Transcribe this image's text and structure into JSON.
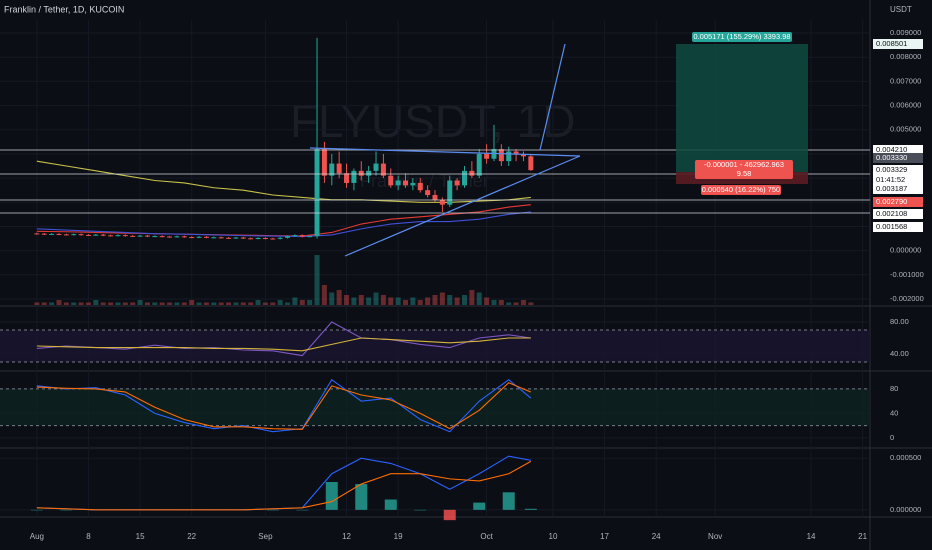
{
  "header": {
    "symbol": "Franklin / Tether, 1D, KUCOIN",
    "currency": "USDT",
    "watermark": "FLYUSDT, 1D",
    "watermark_sub": "Franklin / Tether",
    "countdown": "01:41:52"
  },
  "chart_data": {
    "type": "candlestick",
    "x": [
      0,
      1,
      2,
      3,
      4,
      5,
      6,
      7,
      8,
      9,
      10,
      11,
      12,
      13,
      14,
      15,
      16,
      17,
      18,
      19,
      20,
      21,
      22,
      23,
      24,
      25,
      26,
      27,
      28,
      29,
      30,
      31,
      32,
      33,
      34,
      35,
      36,
      37,
      38,
      39,
      40,
      41,
      42,
      43,
      44,
      45,
      46,
      47,
      48,
      49,
      50,
      51,
      52,
      53,
      54,
      55,
      56,
      57,
      58,
      59,
      60,
      61,
      62,
      63,
      64,
      65,
      66,
      67
    ],
    "open": [
      0.00071,
      0.0007,
      0.00068,
      0.00069,
      0.00067,
      0.00066,
      0.00068,
      0.00065,
      0.00064,
      0.00066,
      0.00063,
      0.00062,
      0.00064,
      0.00061,
      0.0006,
      0.00062,
      0.00059,
      0.0006,
      0.00058,
      0.00057,
      0.00059,
      0.00056,
      0.00055,
      0.00057,
      0.00054,
      0.00055,
      0.00053,
      0.00052,
      0.00054,
      0.00051,
      0.0005,
      0.00052,
      0.0005,
      0.00049,
      0.00053,
      0.0006,
      0.00064,
      0.00058,
      0.0006,
      0.0042,
      0.0031,
      0.0036,
      0.0032,
      0.0028,
      0.0033,
      0.0031,
      0.0033,
      0.0036,
      0.0031,
      0.0027,
      0.0029,
      0.0027,
      0.0028,
      0.0025,
      0.0023,
      0.0021,
      0.0019,
      0.0029,
      0.0027,
      0.0033,
      0.0031,
      0.004,
      0.0038,
      0.0042,
      0.0037,
      0.0041,
      0.004,
      0.0039
    ],
    "high": [
      0.00074,
      0.00073,
      0.00072,
      0.00072,
      0.0007,
      0.00071,
      0.00071,
      0.00068,
      0.00069,
      0.00069,
      0.00066,
      0.00067,
      0.00067,
      0.00064,
      0.00065,
      0.00065,
      0.00063,
      0.00063,
      0.00061,
      0.00062,
      0.00062,
      0.00059,
      0.0006,
      0.0006,
      0.00058,
      0.00058,
      0.00056,
      0.00057,
      0.00057,
      0.00054,
      0.00055,
      0.00055,
      0.00053,
      0.00056,
      0.00063,
      0.00067,
      0.00067,
      0.00063,
      0.0088,
      0.0045,
      0.004,
      0.0041,
      0.0036,
      0.0034,
      0.0037,
      0.0035,
      0.0041,
      0.004,
      0.0034,
      0.0031,
      0.0032,
      0.003,
      0.003,
      0.0027,
      0.0025,
      0.0022,
      0.0031,
      0.003,
      0.0035,
      0.0037,
      0.0042,
      0.0044,
      0.0052,
      0.0044,
      0.0043,
      0.0042,
      0.0041,
      0.004
    ],
    "low": [
      0.00067,
      0.00065,
      0.00065,
      0.00064,
      0.00063,
      0.00063,
      0.00062,
      0.00061,
      0.00061,
      0.0006,
      0.00059,
      0.00059,
      0.00058,
      0.00057,
      0.00057,
      0.00056,
      0.00056,
      0.00055,
      0.00054,
      0.00054,
      0.00053,
      0.00052,
      0.00052,
      0.00051,
      0.00051,
      0.0005,
      0.00049,
      0.00049,
      0.00048,
      0.00047,
      0.00047,
      0.00047,
      0.00046,
      0.00046,
      0.0005,
      0.00057,
      0.00055,
      0.00055,
      0.0005,
      0.0028,
      0.0027,
      0.003,
      0.0026,
      0.0025,
      0.0029,
      0.0028,
      0.0031,
      0.003,
      0.0026,
      0.0025,
      0.0026,
      0.0025,
      0.0024,
      0.0022,
      0.002,
      0.0016,
      0.0018,
      0.0025,
      0.0026,
      0.003,
      0.003,
      0.0036,
      0.0037,
      0.0035,
      0.0035,
      0.0037,
      0.0037,
      0.0033
    ],
    "close": [
      0.0007,
      0.00068,
      0.00069,
      0.00067,
      0.00066,
      0.00068,
      0.00065,
      0.00064,
      0.00066,
      0.00063,
      0.00062,
      0.00064,
      0.00061,
      0.0006,
      0.00062,
      0.00059,
      0.0006,
      0.00058,
      0.00057,
      0.00059,
      0.00056,
      0.00055,
      0.00057,
      0.00054,
      0.00055,
      0.00053,
      0.00052,
      0.00054,
      0.00051,
      0.0005,
      0.00052,
      0.0005,
      0.00049,
      0.00053,
      0.0006,
      0.00064,
      0.00058,
      0.0006,
      0.0042,
      0.0031,
      0.0036,
      0.0032,
      0.0028,
      0.0033,
      0.0031,
      0.0033,
      0.0036,
      0.0031,
      0.0027,
      0.0029,
      0.0027,
      0.0028,
      0.0025,
      0.0023,
      0.0021,
      0.0019,
      0.0029,
      0.0027,
      0.0033,
      0.0031,
      0.004,
      0.0038,
      0.0042,
      0.0037,
      0.0041,
      0.004,
      0.0039,
      0.00333
    ],
    "volume": [
      1,
      1,
      1,
      2,
      1,
      1,
      1,
      1,
      2,
      1,
      1,
      1,
      1,
      1,
      2,
      1,
      1,
      1,
      1,
      1,
      1,
      2,
      1,
      1,
      1,
      1,
      1,
      1,
      1,
      1,
      2,
      1,
      1,
      2,
      1,
      3,
      2,
      2,
      20,
      8,
      5,
      6,
      4,
      3,
      4,
      3,
      5,
      4,
      3,
      3,
      2,
      3,
      2,
      3,
      4,
      5,
      4,
      3,
      4,
      6,
      5,
      3,
      2,
      2,
      1,
      1,
      2,
      1
    ],
    "up_color": "#26a69a",
    "down_color": "#ef5350",
    "xlim": [
      -5,
      113
    ],
    "xticks": [
      {
        "value": 0,
        "label": "Aug"
      },
      {
        "value": 7,
        "label": "8"
      },
      {
        "value": 14,
        "label": "15"
      },
      {
        "value": 21,
        "label": "22"
      },
      {
        "value": 31,
        "label": "Sep"
      },
      {
        "value": 42,
        "label": "12"
      },
      {
        "value": 49,
        "label": "19"
      },
      {
        "value": 61,
        "label": "Oct"
      },
      {
        "value": 70,
        "label": "10"
      },
      {
        "value": 77,
        "label": "17"
      },
      {
        "value": 84,
        "label": "24"
      },
      {
        "value": 92,
        "label": "Nov"
      },
      {
        "value": 105,
        "label": "14"
      },
      {
        "value": 112,
        "label": "21"
      }
    ],
    "ylim": [
      -0.00225,
      0.00954
    ],
    "yticks": [
      {
        "value": 0.009,
        "label": "0.009000"
      },
      {
        "value": 0.008,
        "label": "0.008000"
      },
      {
        "value": 0.007,
        "label": "0.007000"
      },
      {
        "value": 0.006,
        "label": "0.006000"
      },
      {
        "value": 0.005,
        "label": "0.005000"
      },
      {
        "value": 0.004,
        "label": "0.004000"
      },
      {
        "value": 0.003,
        "label": "0.003000"
      },
      {
        "value": 0.002,
        "label": "0.002000"
      },
      {
        "value": 0.001,
        "label": "0.001000"
      },
      {
        "value": 0,
        "label": "0.000000"
      },
      {
        "value": -0.001,
        "label": "-0.001000"
      },
      {
        "value": -0.002,
        "label": "-0.002000"
      }
    ],
    "indicator_x": [
      0,
      4,
      8,
      12,
      16,
      20,
      24,
      28,
      32,
      36,
      40,
      44,
      48,
      52,
      56,
      60,
      64,
      67
    ],
    "moving_averages": [
      {
        "color": "#c9c24a",
        "values": [
          0.0037,
          0.0035,
          0.0033,
          0.0031,
          0.0029,
          0.0028,
          0.0026,
          0.0025,
          0.0023,
          0.0022,
          0.0021,
          0.0021,
          0.00205,
          0.002,
          0.002,
          0.00205,
          0.0021,
          0.0022
        ]
      },
      {
        "color": "#e53935",
        "values": [
          0.0008,
          0.00078,
          0.00075,
          0.00072,
          0.0007,
          0.00068,
          0.00066,
          0.00064,
          0.00062,
          0.0006,
          0.00075,
          0.0011,
          0.0013,
          0.0014,
          0.0015,
          0.0016,
          0.0018,
          0.0019
        ]
      },
      {
        "color": "#3f51d8",
        "values": [
          0.0009,
          0.00085,
          0.0008,
          0.00075,
          0.0007,
          0.00068,
          0.00065,
          0.00062,
          0.0006,
          0.00058,
          0.00065,
          0.0009,
          0.0011,
          0.0012,
          0.0012,
          0.0013,
          0.0015,
          0.0016
        ]
      }
    ]
  },
  "rsi": {
    "ylim": [
      20,
      97.5
    ],
    "yticks": [
      {
        "value": 80,
        "label": "80.00"
      },
      {
        "value": 40,
        "label": "40.00"
      }
    ],
    "bands": [
      70,
      30
    ],
    "series": [
      {
        "color": "#7e57c2",
        "values": [
          47,
          50,
          48,
          46,
          51,
          47,
          48,
          45,
          44,
          38,
          80,
          60,
          58,
          52,
          48,
          60,
          64,
          60
        ]
      },
      {
        "color": "#d4b53a",
        "values": [
          50,
          49,
          48,
          48,
          48,
          48,
          47,
          47,
          46,
          44,
          52,
          60,
          58,
          56,
          54,
          56,
          60,
          60
        ]
      }
    ]
  },
  "stoch": {
    "ylim": [
      -15,
      106
    ],
    "yticks": [
      80,
      40,
      0
    ],
    "bands": [
      80,
      20
    ],
    "series": [
      {
        "color": "#2962ff",
        "values": [
          85,
          80,
          82,
          70,
          40,
          25,
          15,
          20,
          10,
          15,
          95,
          60,
          65,
          30,
          10,
          60,
          95,
          65
        ]
      },
      {
        "color": "#ff6d00",
        "values": [
          83,
          81,
          80,
          75,
          50,
          30,
          18,
          18,
          15,
          14,
          85,
          70,
          62,
          40,
          15,
          45,
          90,
          75
        ]
      }
    ]
  },
  "macd": {
    "ylim": [
      -5e-05,
      0.00058
    ],
    "yticks": [
      {
        "value": 0.0005,
        "label": "0.000500"
      },
      {
        "value": 0,
        "label": "0.000000"
      }
    ],
    "series": [
      {
        "color": "#2962ff",
        "values": [
          2e-05,
          1e-05,
          0,
          0,
          0,
          0,
          0,
          0,
          1e-05,
          2e-05,
          0.00035,
          0.0005,
          0.00045,
          0.00035,
          0.0002,
          0.00035,
          0.00052,
          0.00048
        ]
      },
      {
        "color": "#ff6d00",
        "values": [
          2e-05,
          1e-05,
          0,
          0,
          0,
          0,
          0,
          0,
          1e-05,
          2e-05,
          8e-05,
          0.00025,
          0.00035,
          0.00035,
          0.0003,
          0.00028,
          0.00035,
          0.00047
        ]
      }
    ],
    "histogram": [
      0,
      0,
      0,
      0,
      0,
      0,
      0,
      0,
      0,
      0,
      0.00027,
      0.00025,
      0.0001,
      0,
      -0.0001,
      7e-05,
      0.00017,
      1e-05
    ]
  },
  "price_labels": [
    "0.008501",
    "0.004210",
    "0.003330",
    "0.003329",
    "0.003187",
    "0.002790",
    "0.002108",
    "0.001568"
  ],
  "position": {
    "target_label": "0.005171 (155.29%) 3393.98",
    "mid_label": "-0.000001 - 462962.963",
    "mid_sub": "9.58",
    "stop_label": "0.000540 (16.22%) 750"
  }
}
